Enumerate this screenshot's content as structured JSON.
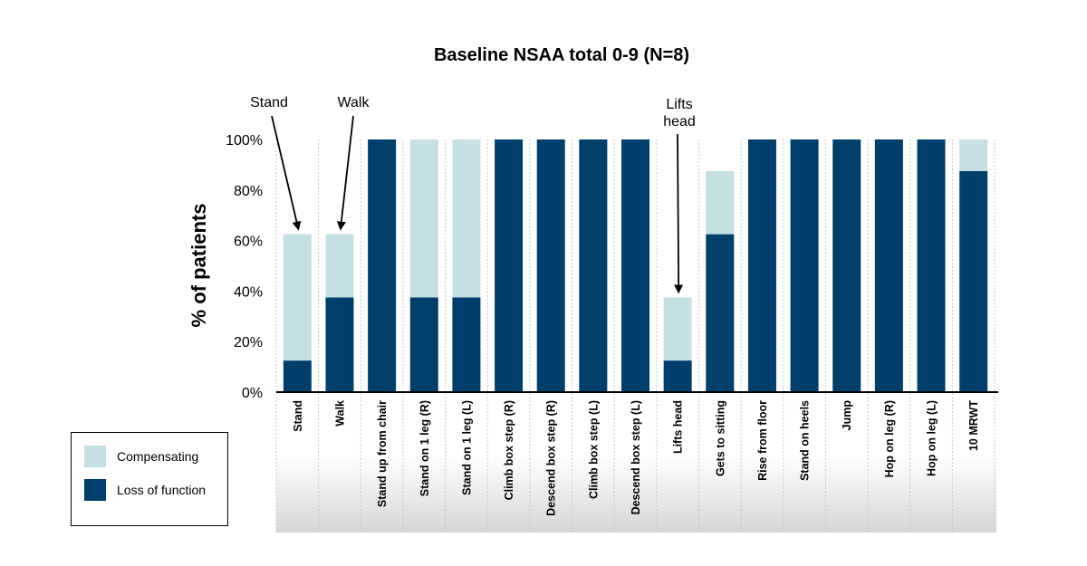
{
  "chart_data": {
    "type": "bar",
    "stacked": true,
    "title": "Baseline NSAA total 0-9 (N=8)",
    "ylabel": "% of patients",
    "xlabel": "",
    "ylim": [
      0,
      100
    ],
    "yticks": [
      "0%",
      "20%",
      "40%",
      "60%",
      "80%",
      "100%"
    ],
    "categories": [
      "Stand",
      "Walk",
      "Stand up from chair",
      "Stand on 1 leg (R)",
      "Stand on 1 leg (L)",
      "Climb box step (R)",
      "Descend box step (R)",
      "Climb box step (L)",
      "Descend box step (L)",
      "Lifts head",
      "Gets to sitting",
      "Rise from floor",
      "Stand on heels",
      "Jump",
      "Hop on leg (R)",
      "Hop on leg (L)",
      "10 MRWT"
    ],
    "series": [
      {
        "name": "Loss of function",
        "color": "#003f6b",
        "values": [
          12.5,
          37.5,
          100,
          37.5,
          37.5,
          100,
          100,
          100,
          100,
          12.5,
          62.5,
          100,
          100,
          100,
          100,
          100,
          87.5
        ]
      },
      {
        "name": "Compensating",
        "color": "#c5e0e3",
        "values": [
          50,
          25,
          0,
          62.5,
          62.5,
          0,
          0,
          0,
          0,
          25,
          25,
          0,
          0,
          0,
          0,
          0,
          12.5
        ]
      }
    ],
    "legend": {
      "placement": "bottom-left",
      "entries": [
        "Compensating",
        "Loss of function"
      ]
    },
    "annotations": [
      {
        "text": "Stand",
        "category": "Stand",
        "lines": [
          "Stand"
        ]
      },
      {
        "text": "Walk",
        "category": "Walk",
        "lines": [
          "Walk"
        ]
      },
      {
        "text": "Lifts head",
        "category": "Lifts head",
        "lines": [
          "Lifts",
          "head"
        ]
      }
    ]
  },
  "legend": {
    "compensating_label": "Compensating",
    "loss_label": "Loss of function",
    "compensating_color": "#c5e0e3",
    "loss_color": "#003f6b"
  }
}
